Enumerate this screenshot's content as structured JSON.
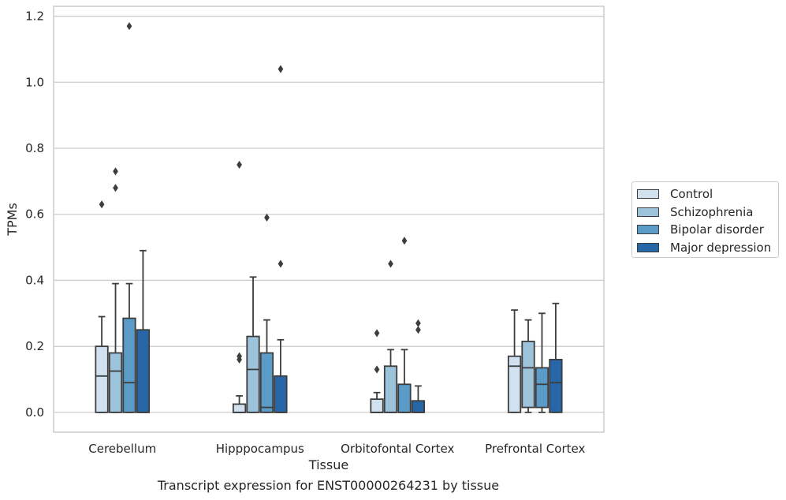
{
  "chart_data": {
    "type": "box",
    "title": "",
    "xlabel": "Tissue",
    "ylabel": "TPMs",
    "caption": "Transcript expression for ENST00000264231 by tissue",
    "ylim": [
      -0.06,
      1.23
    ],
    "yticks": [
      0.0,
      0.2,
      0.4,
      0.6,
      0.8,
      1.0,
      1.2
    ],
    "ytick_labels": [
      "0.0",
      "0.2",
      "0.4",
      "0.6",
      "0.8",
      "1.0",
      "1.2"
    ],
    "grid": "horizontal",
    "legend_position": "right",
    "categories": [
      "Cerebellum",
      "Hipppocampus",
      "Orbitofontal Cortex",
      "Prefrontal Cortex"
    ],
    "series": [
      {
        "name": "Control",
        "color": "#d1e1f0",
        "boxes": [
          {
            "whisker_low": 0.0,
            "q1": 0.0,
            "median": 0.11,
            "q3": 0.2,
            "whisker_high": 0.29,
            "outliers": [
              0.63
            ]
          },
          {
            "whisker_low": 0.0,
            "q1": 0.0,
            "median": 0.0,
            "q3": 0.025,
            "whisker_high": 0.05,
            "outliers": [
              0.16,
              0.17,
              0.75
            ]
          },
          {
            "whisker_low": 0.0,
            "q1": 0.0,
            "median": 0.0,
            "q3": 0.04,
            "whisker_high": 0.06,
            "outliers": [
              0.13,
              0.24
            ]
          },
          {
            "whisker_low": 0.0,
            "q1": 0.0,
            "median": 0.14,
            "q3": 0.17,
            "whisker_high": 0.31,
            "outliers": []
          }
        ]
      },
      {
        "name": "Schizophrenia",
        "color": "#9cc3da",
        "boxes": [
          {
            "whisker_low": 0.0,
            "q1": 0.0,
            "median": 0.125,
            "q3": 0.18,
            "whisker_high": 0.39,
            "outliers": [
              0.68,
              0.73
            ]
          },
          {
            "whisker_low": 0.0,
            "q1": 0.0,
            "median": 0.13,
            "q3": 0.23,
            "whisker_high": 0.41,
            "outliers": []
          },
          {
            "whisker_low": 0.0,
            "q1": 0.0,
            "median": 0.0,
            "q3": 0.14,
            "whisker_high": 0.19,
            "outliers": [
              0.45
            ]
          },
          {
            "whisker_low": 0.0,
            "q1": 0.015,
            "median": 0.135,
            "q3": 0.215,
            "whisker_high": 0.28,
            "outliers": []
          }
        ]
      },
      {
        "name": "Bipolar disorder",
        "color": "#5a9bc8",
        "boxes": [
          {
            "whisker_low": 0.0,
            "q1": 0.0,
            "median": 0.09,
            "q3": 0.285,
            "whisker_high": 0.39,
            "outliers": [
              1.17
            ]
          },
          {
            "whisker_low": 0.0,
            "q1": 0.0,
            "median": 0.015,
            "q3": 0.18,
            "whisker_high": 0.28,
            "outliers": [
              0.59
            ]
          },
          {
            "whisker_low": 0.0,
            "q1": 0.0,
            "median": 0.0,
            "q3": 0.085,
            "whisker_high": 0.19,
            "outliers": [
              0.52
            ]
          },
          {
            "whisker_low": 0.0,
            "q1": 0.015,
            "median": 0.085,
            "q3": 0.135,
            "whisker_high": 0.3,
            "outliers": []
          }
        ]
      },
      {
        "name": "Major depression",
        "color": "#2767a8",
        "boxes": [
          {
            "whisker_low": 0.0,
            "q1": 0.0,
            "median": 0.0,
            "q3": 0.25,
            "whisker_high": 0.49,
            "outliers": []
          },
          {
            "whisker_low": 0.0,
            "q1": 0.0,
            "median": 0.0,
            "q3": 0.11,
            "whisker_high": 0.22,
            "outliers": [
              0.45,
              1.04
            ]
          },
          {
            "whisker_low": 0.0,
            "q1": 0.0,
            "median": 0.0,
            "q3": 0.035,
            "whisker_high": 0.08,
            "outliers": [
              0.25,
              0.27
            ]
          },
          {
            "whisker_low": 0.0,
            "q1": 0.0,
            "median": 0.09,
            "q3": 0.16,
            "whisker_high": 0.33,
            "outliers": []
          }
        ]
      }
    ]
  },
  "colors": {
    "grid": "#cccccc",
    "frame": "#cccccc",
    "line": "#3d3d3d",
    "text": "#262626"
  }
}
